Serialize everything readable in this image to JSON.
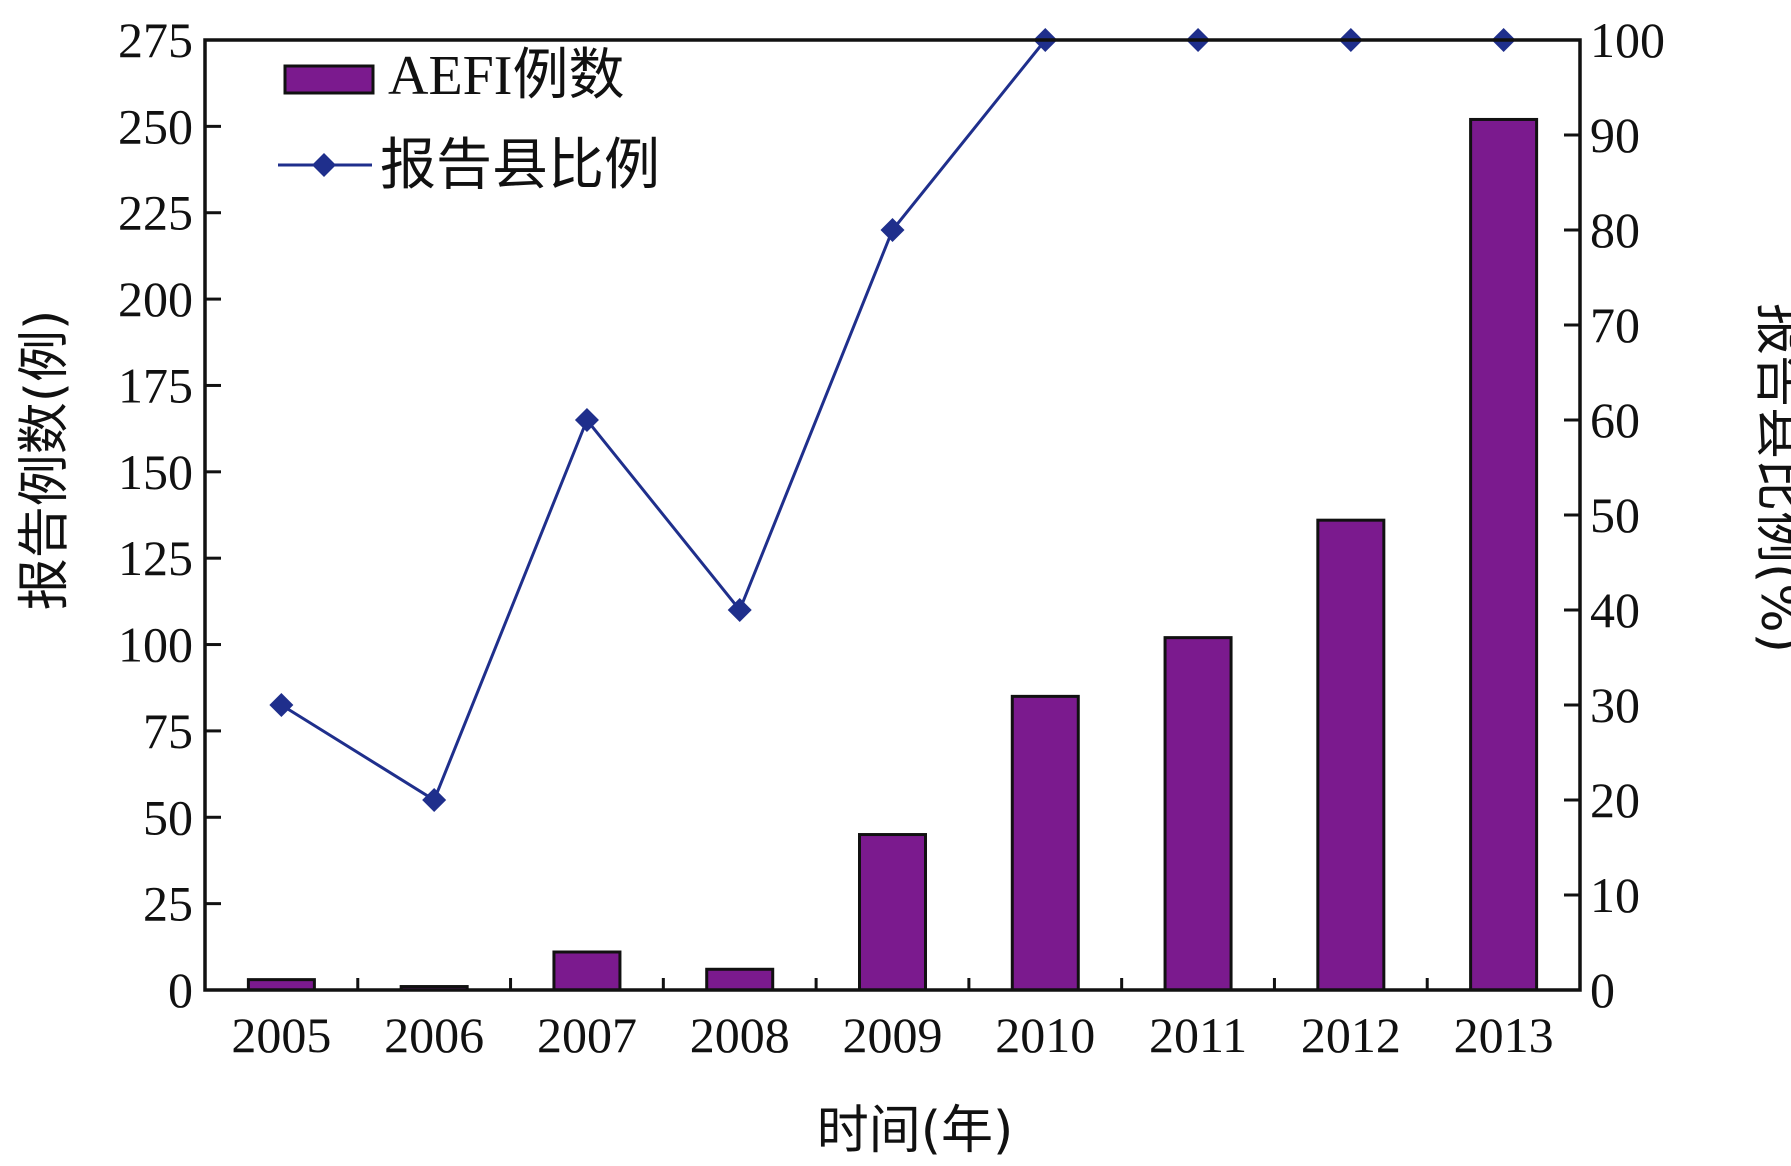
{
  "chart_data": {
    "type": "bar",
    "categories": [
      "2005",
      "2006",
      "2007",
      "2008",
      "2009",
      "2010",
      "2011",
      "2012",
      "2013"
    ],
    "series": [
      {
        "name": "AEFI例数",
        "type": "bar",
        "axis": "left",
        "values": [
          3,
          1,
          11,
          6,
          45,
          85,
          102,
          136,
          252
        ],
        "color": "#7b1a8e"
      },
      {
        "name": "报告县比例",
        "type": "line",
        "axis": "right",
        "values": [
          30,
          20,
          60,
          40,
          80,
          100,
          100,
          100,
          100
        ],
        "color": "#1f2f8c"
      }
    ],
    "xlabel": "时间(年)",
    "ylabel": "报告例数(例)",
    "y2label": "报告县比例(%)",
    "ylim": [
      0,
      275
    ],
    "y2lim": [
      0,
      100
    ],
    "yticks": [
      "0",
      "25",
      "50",
      "75",
      "100",
      "125",
      "150",
      "175",
      "200",
      "225",
      "250",
      "275"
    ],
    "y2ticks": [
      "0",
      "10",
      "20",
      "30",
      "40",
      "50",
      "60",
      "70",
      "80",
      "90",
      "100"
    ],
    "legend_position": "top-left",
    "grid": false
  }
}
